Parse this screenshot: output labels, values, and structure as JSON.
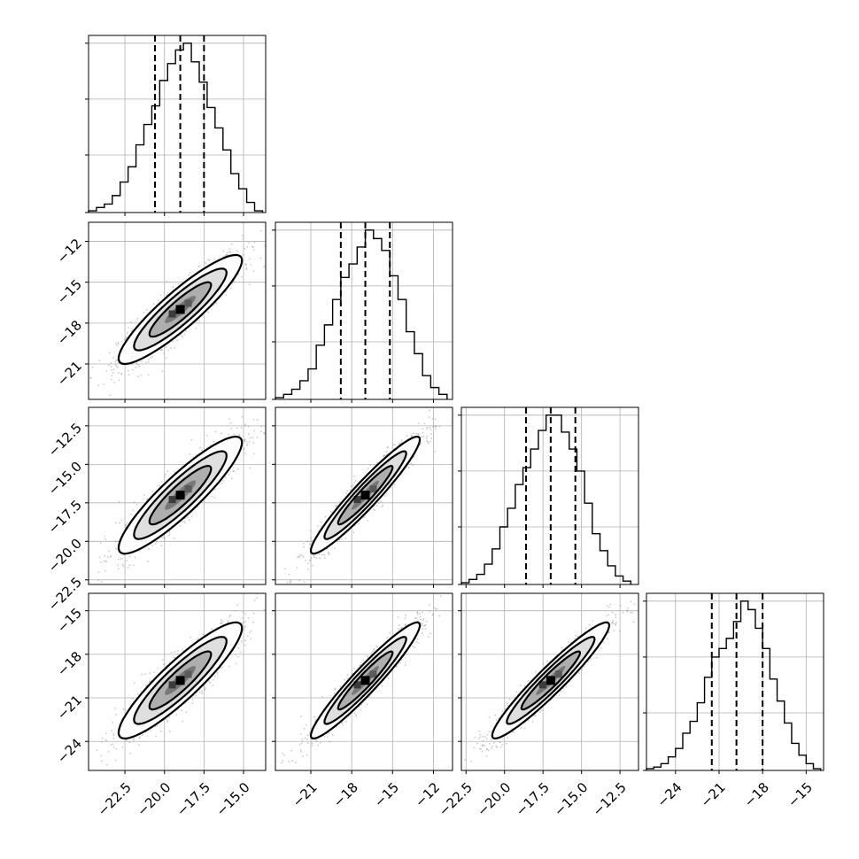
{
  "chart_data": {
    "type": "corner",
    "n_params": 4,
    "title": "",
    "grid": true,
    "colors": {
      "points": "#8c8c8c",
      "lines": "#000000"
    },
    "params": [
      {
        "index": 0,
        "range": [
          -24.8,
          -13.6
        ],
        "median": -19.0,
        "q16": -20.6,
        "q84": -17.5,
        "ticks": [
          -22.5,
          -20.0,
          -17.5,
          -15.0
        ],
        "tick_labels": [
          "−22.5",
          "−20.0",
          "−17.5",
          "−15.0"
        ]
      },
      {
        "index": 1,
        "range": [
          -23.6,
          -10.6
        ],
        "median": -17.0,
        "q16": -18.8,
        "q84": -15.2,
        "ticks": [
          -21,
          -18,
          -15,
          -12
        ],
        "tick_labels": [
          "−21",
          "−18",
          "−15",
          "−12"
        ]
      },
      {
        "index": 2,
        "range": [
          -22.8,
          -11.3
        ],
        "median": -17.0,
        "q16": -18.6,
        "q84": -15.4,
        "ticks": [
          -22.5,
          -20.0,
          -17.5,
          -15.0,
          -12.5
        ],
        "tick_labels": [
          "−22.5",
          "−20.0",
          "−17.5",
          "−15.0",
          "−12.5"
        ]
      },
      {
        "index": 3,
        "range": [
          -26.0,
          -13.8
        ],
        "median": -19.8,
        "q16": -21.5,
        "q84": -18.0,
        "ticks": [
          -24,
          -21,
          -18,
          -15
        ],
        "tick_labels": [
          "−24",
          "−21",
          "−18",
          "−15"
        ]
      }
    ],
    "histograms": [
      {
        "param": 0,
        "bins": [
          -24.8,
          -24.3,
          -23.8,
          -23.3,
          -22.8,
          -22.3,
          -21.8,
          -21.3,
          -20.8,
          -20.3,
          -19.8,
          -19.3,
          -18.8,
          -18.3,
          -17.8,
          -17.3,
          -16.8,
          -16.3,
          -15.8,
          -15.3,
          -14.8,
          -14.3,
          -13.8
        ],
        "counts": [
          1,
          3,
          5,
          10,
          18,
          27,
          40,
          52,
          63,
          78,
          88,
          96,
          100,
          89,
          77,
          62,
          50,
          37,
          23,
          14,
          6,
          1
        ]
      },
      {
        "param": 1,
        "bins": [
          -23.6,
          -23.0,
          -22.4,
          -21.8,
          -21.2,
          -20.6,
          -20.0,
          -19.4,
          -18.8,
          -18.2,
          -17.6,
          -17.0,
          -16.4,
          -15.8,
          -15.2,
          -14.6,
          -14.0,
          -13.4,
          -12.8,
          -12.2,
          -11.6,
          -11.0
        ],
        "counts": [
          1,
          3,
          6,
          11,
          18,
          32,
          44,
          59,
          72,
          80,
          90,
          100,
          95,
          88,
          73,
          59,
          40,
          27,
          14,
          7,
          3
        ]
      },
      {
        "param": 2,
        "bins": [
          -22.8,
          -22.3,
          -21.8,
          -21.3,
          -20.8,
          -20.3,
          -19.8,
          -19.3,
          -18.8,
          -18.3,
          -17.8,
          -17.3,
          -16.8,
          -16.3,
          -15.8,
          -15.3,
          -14.8,
          -14.3,
          -13.8,
          -13.3,
          -12.8,
          -12.3,
          -11.8
        ],
        "counts": [
          1,
          3,
          6,
          12,
          21,
          34,
          45,
          59,
          69,
          80,
          91,
          100,
          100,
          90,
          80,
          67,
          48,
          30,
          20,
          11,
          5,
          2
        ]
      },
      {
        "param": 3,
        "bins": [
          -26.0,
          -25.5,
          -25.0,
          -24.5,
          -24.0,
          -23.5,
          -23.0,
          -22.5,
          -22.0,
          -21.5,
          -21.0,
          -20.5,
          -20.0,
          -19.5,
          -19.0,
          -18.5,
          -18.0,
          -17.5,
          -17.0,
          -16.5,
          -16.0,
          -15.5,
          -15.0,
          -14.5,
          -14.0
        ],
        "counts": [
          1,
          2,
          4,
          8,
          13,
          22,
          29,
          40,
          55,
          67,
          72,
          78,
          88,
          100,
          95,
          84,
          72,
          54,
          41,
          28,
          16,
          9,
          4,
          1
        ]
      }
    ],
    "pairs": [
      {
        "x": 0,
        "y": 1,
        "mean": [
          -19.0,
          -17.0
        ],
        "sd": [
          1.95,
          2.0
        ],
        "rho": 0.9
      },
      {
        "x": 0,
        "y": 2,
        "mean": [
          -19.0,
          -17.0
        ],
        "sd": [
          1.95,
          1.9
        ],
        "rho": 0.9
      },
      {
        "x": 1,
        "y": 2,
        "mean": [
          -17.0,
          -17.0
        ],
        "sd": [
          2.0,
          1.9
        ],
        "rho": 0.95
      },
      {
        "x": 0,
        "y": 3,
        "mean": [
          -19.0,
          -19.8
        ],
        "sd": [
          1.95,
          2.0
        ],
        "rho": 0.9
      },
      {
        "x": 1,
        "y": 3,
        "mean": [
          -17.0,
          -19.8
        ],
        "sd": [
          2.0,
          2.0
        ],
        "rho": 0.95
      },
      {
        "x": 2,
        "y": 3,
        "mean": [
          -17.0,
          -19.8
        ],
        "sd": [
          1.9,
          2.0
        ],
        "rho": 0.95
      }
    ],
    "contour_levels_sigma": [
      0.5,
      1.0,
      1.5,
      2.0
    ]
  }
}
